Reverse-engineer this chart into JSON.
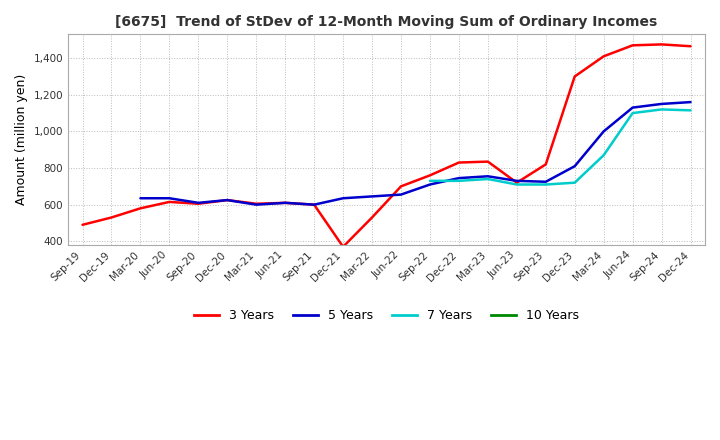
{
  "title": "[6675]  Trend of StDev of 12-Month Moving Sum of Ordinary Incomes",
  "ylabel": "Amount (million yen)",
  "ylim": [
    380,
    1530
  ],
  "yticks": [
    400,
    600,
    800,
    1000,
    1200,
    1400
  ],
  "background_color": "#ffffff",
  "grid_color": "#bbbbbb",
  "series": {
    "3 Years": {
      "color": "#ff0000",
      "data": {
        "Sep-19": 490,
        "Dec-19": 530,
        "Mar-20": 580,
        "Jun-20": 615,
        "Sep-20": 605,
        "Dec-20": 625,
        "Mar-21": 605,
        "Jun-21": 610,
        "Sep-21": 600,
        "Dec-21": 370,
        "Mar-22": 530,
        "Jun-22": 700,
        "Sep-22": 760,
        "Dec-22": 830,
        "Mar-23": 835,
        "Jun-23": 720,
        "Sep-23": 820,
        "Dec-23": 1300,
        "Mar-24": 1410,
        "Jun-24": 1470,
        "Sep-24": 1475,
        "Dec-24": 1465
      }
    },
    "5 Years": {
      "color": "#0000cc",
      "data": {
        "Mar-20": 635,
        "Jun-20": 635,
        "Sep-20": 610,
        "Dec-20": 625,
        "Mar-21": 600,
        "Jun-21": 610,
        "Sep-21": 600,
        "Dec-21": 635,
        "Mar-22": 645,
        "Jun-22": 655,
        "Sep-22": 710,
        "Dec-22": 745,
        "Mar-23": 755,
        "Jun-23": 730,
        "Sep-23": 725,
        "Dec-23": 810,
        "Mar-24": 1000,
        "Jun-24": 1130,
        "Sep-24": 1150,
        "Dec-24": 1160
      }
    },
    "7 Years": {
      "color": "#00cccc",
      "data": {
        "Sep-22": 730,
        "Dec-22": 730,
        "Mar-23": 740,
        "Jun-23": 710,
        "Sep-23": 710,
        "Dec-23": 720,
        "Mar-24": 870,
        "Jun-24": 1100,
        "Sep-24": 1120,
        "Dec-24": 1115
      }
    }
  },
  "xtick_labels": [
    "Sep-19",
    "Dec-19",
    "Mar-20",
    "Jun-20",
    "Sep-20",
    "Dec-20",
    "Mar-21",
    "Jun-21",
    "Sep-21",
    "Dec-21",
    "Mar-22",
    "Jun-22",
    "Sep-22",
    "Dec-22",
    "Mar-23",
    "Jun-23",
    "Sep-23",
    "Dec-23",
    "Mar-24",
    "Jun-24",
    "Sep-24",
    "Dec-24"
  ],
  "legend_labels": [
    "3 Years",
    "5 Years",
    "7 Years",
    "10 Years"
  ],
  "legend_colors": [
    "#ff0000",
    "#0000cc",
    "#00cccc",
    "#008800"
  ]
}
